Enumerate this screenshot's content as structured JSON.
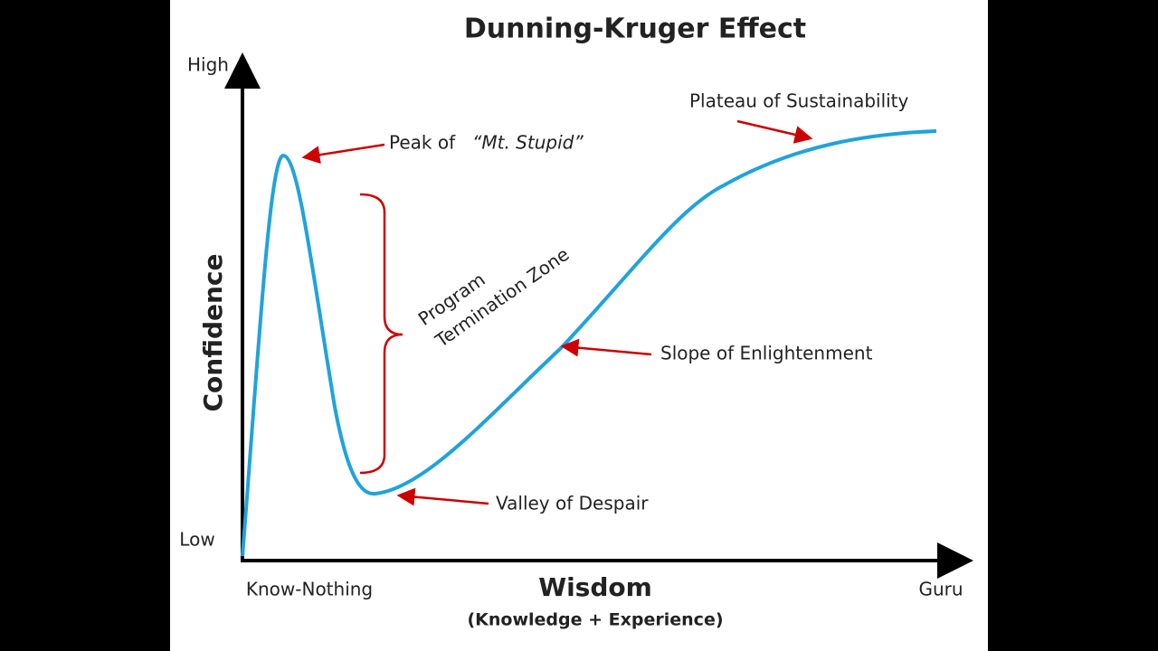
{
  "title": "Dunning-Kruger Effect",
  "y_axis": {
    "label": "Confidence",
    "high": "High",
    "low": "Low"
  },
  "x_axis": {
    "label": "Wisdom",
    "sublabel": "(Knowledge + Experience)",
    "left": "Know-Nothing",
    "right": "Guru"
  },
  "annotations": {
    "peak_prefix": "Peak of",
    "peak_name": "“Mt. Stupid”",
    "plateau": "Plateau of Sustainability",
    "slope": "Slope of Enlightenment",
    "valley": "Valley of Despair"
  },
  "zone": {
    "line1": "Program",
    "line2": "Termination Zone"
  }
}
